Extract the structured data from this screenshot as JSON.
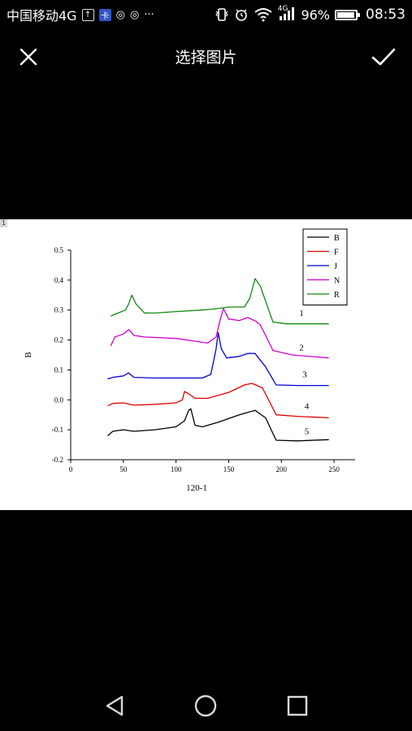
{
  "status_bar": {
    "carrier": "中国移动4G",
    "icon_text_1": "↑",
    "icon_text_2": "卡",
    "icon_text_3": "◎",
    "icon_text_4": "◎",
    "more": "···",
    "net_label": "4G",
    "battery_text": "96%",
    "battery_level": 0.96,
    "time": "08:53"
  },
  "header": {
    "title": "选择图片"
  },
  "chart_data": {
    "type": "line",
    "title": "",
    "xlabel": "120-1",
    "ylabel": "B",
    "xlim": [
      0,
      270
    ],
    "ylim": [
      -0.2,
      0.5
    ],
    "xticks": [
      0,
      50,
      100,
      150,
      200,
      250
    ],
    "yticks": [
      -0.2,
      -0.1,
      0.0,
      0.1,
      0.2,
      0.3,
      0.4,
      0.5
    ],
    "ytick_labels": [
      "-0.2",
      "-0.1",
      "0.0",
      "0.1",
      "0.2",
      "0.3",
      "0.4",
      "0.5"
    ],
    "xtick_labels": [
      "0",
      "50",
      "100",
      "150",
      "200",
      "250"
    ],
    "legend_position": "top-right",
    "legend": [
      "B",
      "F",
      "J",
      "N",
      "R"
    ],
    "colors": [
      "#000000",
      "#e00000",
      "#0000d8",
      "#d000d0",
      "#108a10"
    ],
    "curve_labels": [
      "1",
      "2",
      "3",
      "4",
      "5"
    ],
    "curve_label_points": [
      {
        "x": 217,
        "y": 0.28
      },
      {
        "x": 217,
        "y": 0.165
      },
      {
        "x": 220,
        "y": 0.075
      },
      {
        "x": 222,
        "y": -0.03
      },
      {
        "x": 222,
        "y": -0.115
      }
    ],
    "series": [
      {
        "name": "B",
        "x": [
          35,
          40,
          50,
          60,
          80,
          100,
          108,
          112,
          114,
          118,
          125,
          140,
          160,
          175,
          185,
          195,
          215,
          245
        ],
        "y": [
          -0.12,
          -0.105,
          -0.1,
          -0.105,
          -0.1,
          -0.09,
          -0.07,
          -0.035,
          -0.03,
          -0.085,
          -0.09,
          -0.075,
          -0.05,
          -0.035,
          -0.06,
          -0.135,
          -0.137,
          -0.133
        ]
      },
      {
        "name": "F",
        "x": [
          35,
          40,
          50,
          60,
          80,
          100,
          106,
          108,
          112,
          118,
          130,
          150,
          165,
          172,
          182,
          195,
          215,
          245
        ],
        "y": [
          -0.02,
          -0.012,
          -0.01,
          -0.018,
          -0.015,
          -0.01,
          0.0,
          0.028,
          0.02,
          0.005,
          0.005,
          0.025,
          0.05,
          0.055,
          0.04,
          -0.05,
          -0.055,
          -0.06
        ]
      },
      {
        "name": "J",
        "x": [
          35,
          40,
          50,
          55,
          60,
          80,
          100,
          125,
          133,
          138,
          140,
          143,
          148,
          160,
          168,
          175,
          185,
          195,
          215,
          245
        ],
        "y": [
          0.07,
          0.075,
          0.08,
          0.09,
          0.075,
          0.073,
          0.073,
          0.073,
          0.085,
          0.17,
          0.225,
          0.17,
          0.14,
          0.145,
          0.155,
          0.155,
          0.11,
          0.05,
          0.048,
          0.048
        ]
      },
      {
        "name": "N",
        "x": [
          38,
          42,
          50,
          55,
          60,
          70,
          100,
          130,
          138,
          142,
          145,
          150,
          160,
          168,
          176,
          180,
          185,
          192,
          210,
          245
        ],
        "y": [
          0.18,
          0.21,
          0.22,
          0.235,
          0.215,
          0.21,
          0.205,
          0.19,
          0.21,
          0.27,
          0.305,
          0.27,
          0.265,
          0.275,
          0.262,
          0.25,
          0.215,
          0.165,
          0.15,
          0.14
        ]
      },
      {
        "name": "R",
        "x": [
          38,
          45,
          52,
          55,
          58,
          62,
          70,
          80,
          100,
          125,
          140,
          150,
          158,
          165,
          170,
          175,
          180,
          185,
          192,
          205,
          245
        ],
        "y": [
          0.28,
          0.29,
          0.3,
          0.32,
          0.35,
          0.32,
          0.29,
          0.29,
          0.295,
          0.3,
          0.305,
          0.31,
          0.31,
          0.31,
          0.34,
          0.405,
          0.38,
          0.33,
          0.26,
          0.254,
          0.254
        ]
      }
    ]
  },
  "image_corner_label": "1"
}
